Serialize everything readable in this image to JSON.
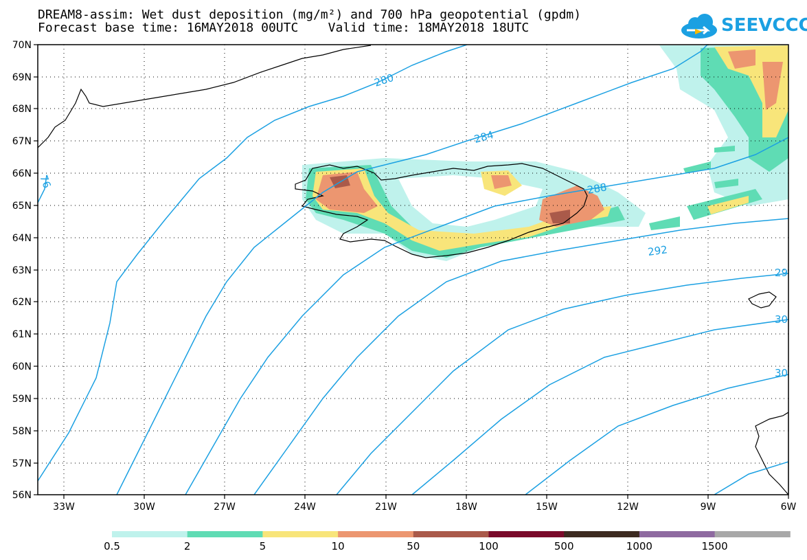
{
  "title_line1": "DREAM8-assim: Wet dust deposition (mg/m²) and 700 hPa geopotential (gpdm)",
  "title_line2": "Forecast base time: 16MAY2018 00UTC    Valid time: 18MAY2018 18UTC",
  "logo_text": "SEEVCCC",
  "latitude_labels": [
    "70N",
    "69N",
    "68N",
    "67N",
    "66N",
    "65N",
    "64N",
    "63N",
    "62N",
    "61N",
    "60N",
    "59N",
    "58N",
    "57N",
    "56N"
  ],
  "longitude_labels": [
    "33W",
    "30W",
    "27W",
    "24W",
    "21W",
    "18W",
    "15W",
    "12W",
    "9W",
    "6W"
  ],
  "contour_labels": [
    "280",
    "284",
    "288",
    "292",
    "76",
    "29",
    "30",
    "30"
  ],
  "legend": {
    "colors": [
      "#bff2ec",
      "#5fdcb4",
      "#f8e57a",
      "#ec9670",
      "#aa5a4a",
      "#7a0a2a",
      "#3c2a20",
      "#8e6aa0",
      "#a8a8a8"
    ],
    "labels": [
      "0.5",
      "2",
      "5",
      "10",
      "50",
      "100",
      "500",
      "1000",
      "1500"
    ]
  },
  "colors": {
    "contour": "#1ba0e2",
    "coast": "#000000"
  }
}
